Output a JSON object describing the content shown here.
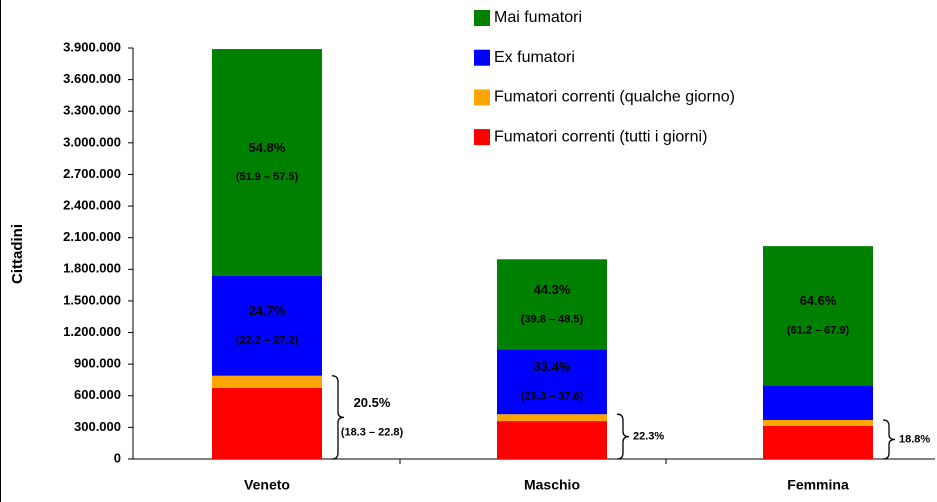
{
  "chart_data": {
    "type": "bar",
    "stacked": true,
    "ylabel": "Cittadini",
    "categories": [
      "Veneto",
      "Maschio",
      "Femmina"
    ],
    "series": [
      {
        "name": "Fumatori correnti (tutti i giorni)",
        "color": "#ff0000",
        "values": [
          675000,
          360000,
          313000
        ]
      },
      {
        "name": "Fumatori correnti (qualche giorno)",
        "color": "#ffa500",
        "values": [
          115000,
          65000,
          57000
        ]
      },
      {
        "name": "Ex fumatori",
        "color": "#0000ff",
        "values": [
          950000,
          615000,
          330000
        ],
        "pct_labels": [
          "24.7%",
          "33.4%",
          null
        ],
        "ci_labels": [
          "(22.2 – 27.2)",
          "(29.3 – 37.6)",
          null
        ]
      },
      {
        "name": "Mai fumatori",
        "color": "#008000",
        "values": [
          2150000,
          855000,
          1320000
        ],
        "pct_labels": [
          "54.8%",
          "44.3%",
          "64.6%"
        ],
        "ci_labels": [
          "(51.9 – 57.5)",
          "(39.8 – 48.5)",
          "(61.2 – 67.9)"
        ]
      }
    ],
    "smokers_labels": [
      "20.5%",
      "22.3%",
      "18.8%"
    ],
    "smokers_ci_labels": [
      "(18.3 – 22.8)",
      null,
      null
    ],
    "ylim": [
      0,
      3900000
    ],
    "yticks": [
      0,
      {
        "value": 300000,
        "label": "300.000"
      },
      {
        "value": 600000,
        "label": "600.000"
      },
      {
        "value": 900000,
        "label": "900.000"
      },
      {
        "value": 1200000,
        "label": "1.200.000"
      },
      {
        "value": 1500000,
        "label": "1.500.000"
      },
      {
        "value": 1800000,
        "label": "1.800.000"
      },
      {
        "value": 2100000,
        "label": "2.100.000"
      },
      {
        "value": 2400000,
        "label": "2.400.000"
      },
      {
        "value": 2700000,
        "label": "2.700.000"
      },
      {
        "value": 3000000,
        "label": "3.000.000"
      },
      {
        "value": 3300000,
        "label": "3.300.000"
      },
      {
        "value": 3600000,
        "label": "3.600.000"
      },
      {
        "value": 3900000,
        "label": "3.900.000"
      }
    ],
    "legend": "top-right",
    "grid": false
  }
}
